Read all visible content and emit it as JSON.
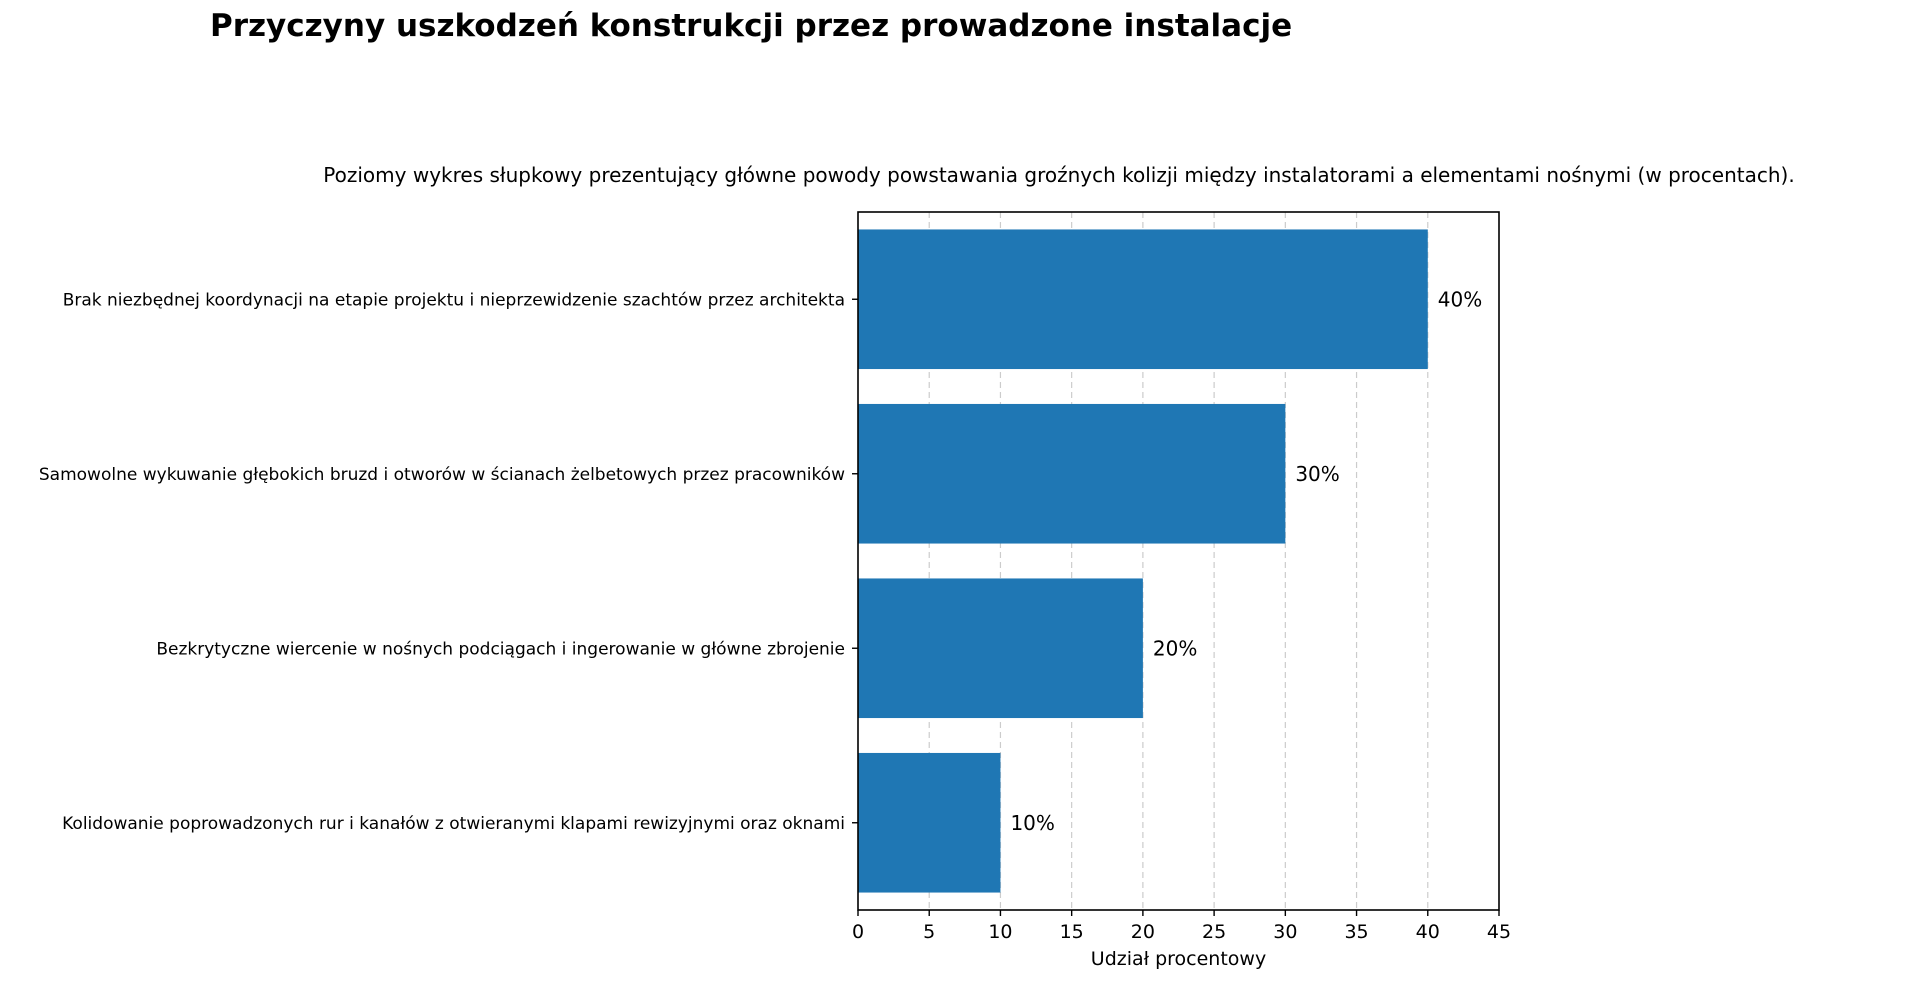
{
  "chart_data": {
    "type": "bar",
    "orientation": "horizontal",
    "title": "Przyczyny uszkodzeń konstrukcji przez prowadzone instalacje",
    "subtitle": "Poziomy wykres słupkowy prezentujący główne powody powstawania groźnych kolizji między instalatorami a elementami nośnymi (w procentach).",
    "xlabel": "Udział procentowy",
    "ylabel": "",
    "categories": [
      "Brak niezbędnej koordynacji na etapie projektu i nieprzewidzenie szachtów przez architekta",
      "Samowolne wykuwanie głębokich bruzd i otworów w ścianach żelbetowych przez pracowników",
      "Bezkrytyczne wiercenie w nośnych podciągach i ingerowanie w główne zbrojenie",
      "Kolidowanie poprowadzonych rur i kanałów z otwieranymi klapami rewizyjnymi oraz oknami"
    ],
    "values": [
      40,
      30,
      20,
      10
    ],
    "data_labels": [
      "40%",
      "30%",
      "20%",
      "10%"
    ],
    "xlim": [
      0,
      45
    ],
    "xticks": [
      0,
      5,
      10,
      15,
      20,
      25,
      30,
      35,
      40,
      45
    ],
    "grid": "x-axis, dashed",
    "bar_color": "#1f77b4"
  }
}
